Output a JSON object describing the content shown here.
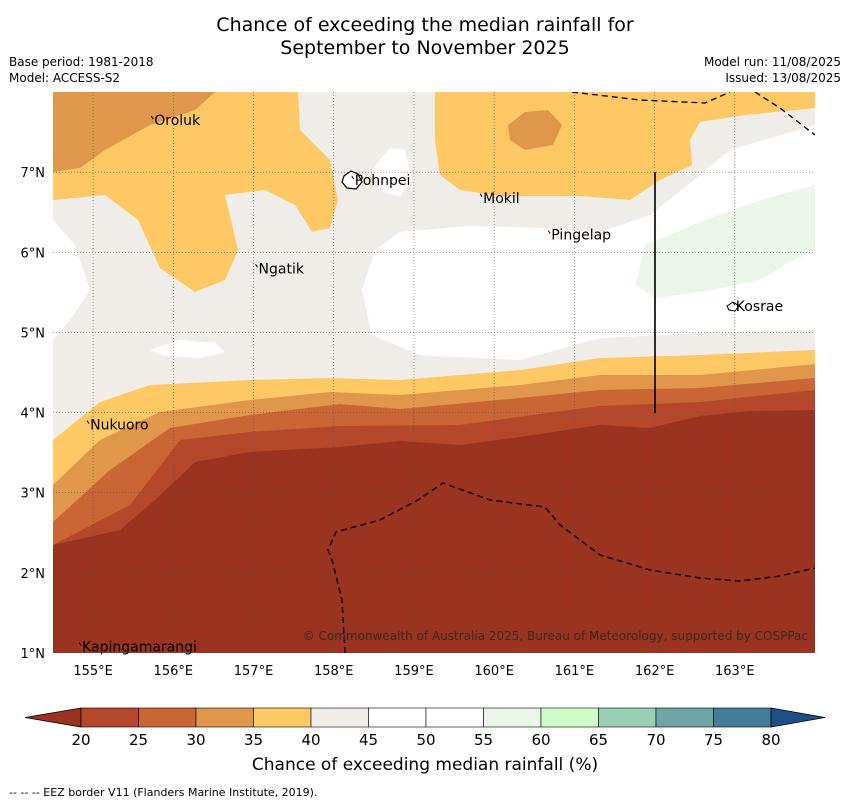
{
  "title_line1": "Chance of exceeding the median rainfall for",
  "title_line2": "September to November 2025",
  "base_period": "Base period: 1981-2018",
  "model": "Model: ACCESS-S2",
  "model_run": "Model run: 11/08/2025",
  "issued": "Issued: 13/08/2025",
  "copyright": "© Commonwealth of Australia 2025, Bureau of Meteorology, supported by COSPPac",
  "footnote": "--  --  -- EEZ border V11 (Flanders Marine Institute, 2019).",
  "map": {
    "lon_range": [
      154.5,
      164.0
    ],
    "lat_range": [
      1.0,
      8.0
    ],
    "lon_ticks": [
      "155°E",
      "156°E",
      "157°E",
      "158°E",
      "159°E",
      "160°E",
      "161°E",
      "162°E",
      "163°E"
    ],
    "lat_ticks": [
      "1°N",
      "2°N",
      "3°N",
      "4°N",
      "5°N",
      "6°N",
      "7°N"
    ],
    "places": [
      {
        "name": "Oroluk",
        "lon": 155.75,
        "lat": 7.65
      },
      {
        "name": "Pohnpei",
        "lon": 158.25,
        "lat": 6.9
      },
      {
        "name": "Mokil",
        "lon": 159.85,
        "lat": 6.68
      },
      {
        "name": "Pingelap",
        "lon": 160.7,
        "lat": 6.22
      },
      {
        "name": "Ngatik",
        "lon": 157.05,
        "lat": 5.8
      },
      {
        "name": "Kosrae",
        "lon": 163.0,
        "lat": 5.33
      },
      {
        "name": "Nukuoro",
        "lon": 154.95,
        "lat": 3.85
      },
      {
        "name": "Kapingamarangi",
        "lon": 154.85,
        "lat": 1.08
      }
    ]
  },
  "colorbar": {
    "label": "Chance of exceeding median rainfall (%)",
    "ticks": [
      "20",
      "25",
      "30",
      "35",
      "40",
      "45",
      "50",
      "55",
      "60",
      "65",
      "70",
      "75",
      "80"
    ],
    "colors": [
      "#9a3320",
      "#b5482a",
      "#c96634",
      "#e0964b",
      "#fec964",
      "#f0ede8",
      "#ffffff",
      "#ffffff",
      "#e9f6e8",
      "#cdfdc9",
      "#9acfb6",
      "#6fa5a7",
      "#457d98",
      "#1d5087"
    ]
  }
}
